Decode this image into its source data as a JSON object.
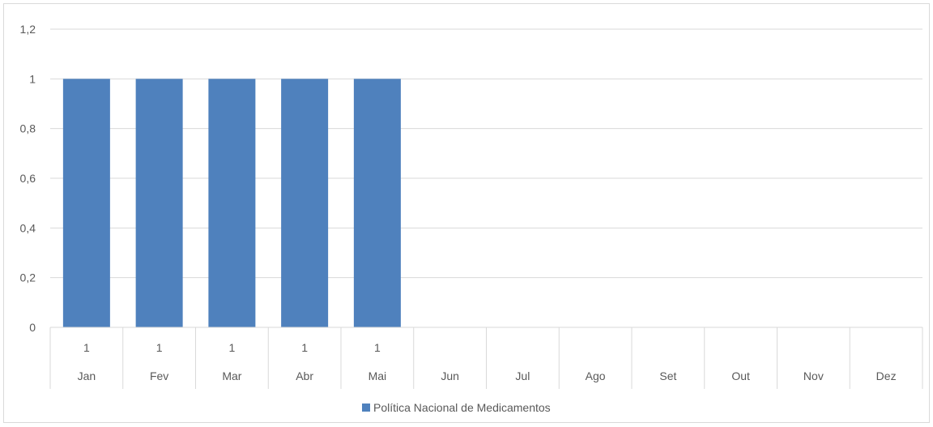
{
  "chart_data": {
    "type": "bar",
    "categories": [
      "Jan",
      "Fev",
      "Mar",
      "Abr",
      "Mai",
      "Jun",
      "Jul",
      "Ago",
      "Set",
      "Out",
      "Nov",
      "Dez"
    ],
    "series": [
      {
        "name": "Política Nacional de Medicamentos",
        "values": [
          1,
          1,
          1,
          1,
          1,
          null,
          null,
          null,
          null,
          null,
          null,
          null
        ],
        "color": "#4f81bd"
      }
    ],
    "y_ticks": [
      "0",
      "0,2",
      "0,4",
      "0,6",
      "0,8",
      "1",
      "1,2"
    ],
    "ylim": [
      0,
      1.2
    ],
    "data_labels": [
      "1",
      "1",
      "1",
      "1",
      "1",
      "",
      "",
      "",
      "",
      "",
      "",
      ""
    ],
    "grid": true,
    "legend_position": "bottom",
    "data_table": true,
    "colors": {
      "gridline": "#d9d9d9",
      "text": "#595959",
      "bar": "#4f81bd"
    }
  }
}
